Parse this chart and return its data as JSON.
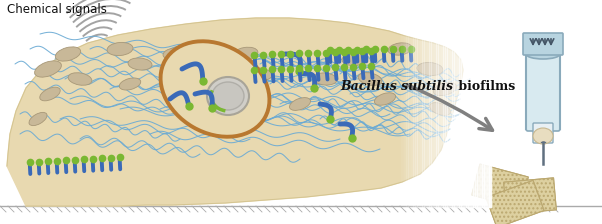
{
  "bg_color": "#ffffff",
  "biofilm_color": "#e8d9b0",
  "biofilm_edge": "#d4c490",
  "nucleus_color": "#b87830",
  "bacteria_color": "#c8b898",
  "bacteria_edge": "#a89878",
  "fiber_color": "#6aaad4",
  "dot_color": "#7ab832",
  "blue_bact_color": "#3a6ab8",
  "wave_color": "#999999",
  "arrow_color": "#808080",
  "text_color": "#111111",
  "label_chemical": "Chemical signals",
  "label_bacillus_italic": "Bacillus subtilis",
  "label_biofilms": " biofilms",
  "syringe_body": "#b8d4e0",
  "syringe_rim": "#8aaabb",
  "syringe_inner": "#d8eaf0",
  "needle_color": "#607080",
  "tile_color": "#ddd0a0",
  "tile_edge": "#bba870",
  "ground_color": "#aaaaaa"
}
